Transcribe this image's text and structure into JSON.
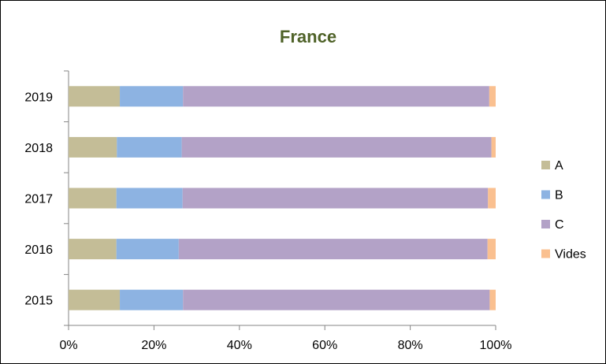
{
  "chart_data": {
    "type": "bar",
    "orientation": "horizontal",
    "stacked": "percent",
    "title": "France",
    "categories": [
      "2019",
      "2018",
      "2017",
      "2016",
      "2015"
    ],
    "series": [
      {
        "name": "A",
        "color": "#c4bd97",
        "values": [
          12,
          11.3,
          11.2,
          11.2,
          12
        ]
      },
      {
        "name": "B",
        "color": "#8db3e2",
        "values": [
          14.8,
          15.2,
          15.5,
          14.6,
          14.8
        ]
      },
      {
        "name": "C",
        "color": "#b3a2c7",
        "values": [
          71.7,
          72.5,
          71.5,
          72.3,
          71.8
        ]
      },
      {
        "name": "Vides",
        "color": "#fac090",
        "values": [
          1.5,
          1.0,
          1.8,
          1.9,
          1.4
        ]
      }
    ],
    "xlim": [
      0,
      100
    ],
    "xticks": [
      "0%",
      "20%",
      "40%",
      "60%",
      "80%",
      "100%"
    ],
    "grid": false,
    "legend": "right",
    "title_color": "#4f6228"
  }
}
